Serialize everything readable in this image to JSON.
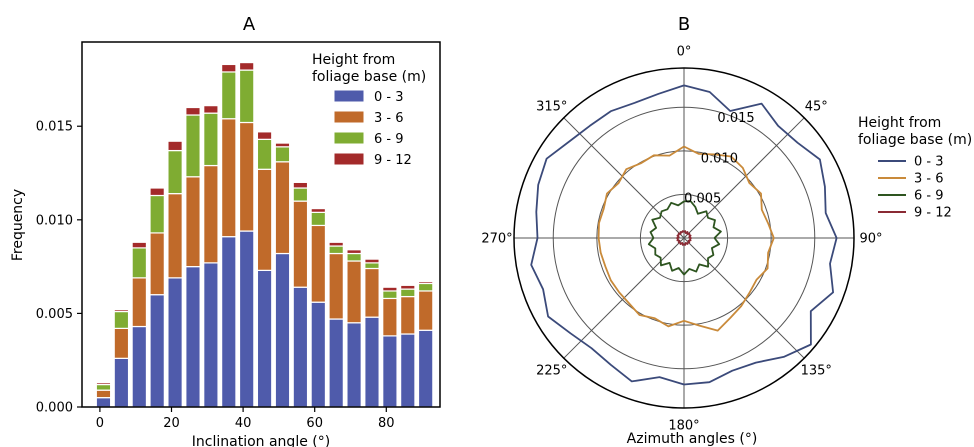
{
  "chart_data": [
    {
      "type": "bar",
      "stacked": true,
      "title": "A",
      "xlabel": "Inclination angle (°)",
      "ylabel": "Frequency",
      "xlim": [
        -5,
        95
      ],
      "ylim": [
        0,
        0.0195
      ],
      "xticks": [
        0,
        20,
        40,
        60,
        80
      ],
      "xtick_labels": [
        "0",
        "20",
        "40",
        "60",
        "80"
      ],
      "yticks": [
        0.0,
        0.005,
        0.01,
        0.015
      ],
      "ytick_labels": [
        "0.000",
        "0.005",
        "0.010",
        "0.015"
      ],
      "legend_title": "Height from\nfoliage base (m)",
      "legend_placement": "top-right",
      "bar_width_deg": 4,
      "x": [
        1,
        6,
        11,
        16,
        21,
        26,
        31,
        36,
        41,
        46,
        51,
        56,
        61,
        66,
        71,
        76,
        81,
        86,
        91
      ],
      "series": [
        {
          "name": "0 - 3",
          "color": "#4f5bab",
          "values": [
            0.0005,
            0.0026,
            0.0043,
            0.006,
            0.0069,
            0.0075,
            0.0077,
            0.0091,
            0.0094,
            0.0073,
            0.0082,
            0.0064,
            0.0056,
            0.0047,
            0.0045,
            0.0048,
            0.0038,
            0.0039,
            0.0041
          ]
        },
        {
          "name": "3 - 6",
          "color": "#c06a2a",
          "values": [
            0.0004,
            0.0016,
            0.0026,
            0.0033,
            0.0045,
            0.0048,
            0.0052,
            0.0063,
            0.0058,
            0.0054,
            0.0049,
            0.0046,
            0.0041,
            0.0035,
            0.0033,
            0.0026,
            0.002,
            0.002,
            0.0021
          ]
        },
        {
          "name": "6 - 9",
          "color": "#7fac32",
          "values": [
            0.0003,
            0.0009,
            0.0016,
            0.002,
            0.0023,
            0.0033,
            0.0028,
            0.0025,
            0.0028,
            0.0016,
            0.0008,
            0.0007,
            0.0007,
            0.0004,
            0.0004,
            0.0003,
            0.0004,
            0.0004,
            0.0004
          ]
        },
        {
          "name": "9 - 12",
          "color": "#a32a2a",
          "values": [
            0.0001,
            0.0001,
            0.0003,
            0.0004,
            0.0005,
            0.0004,
            0.0004,
            0.0004,
            0.0004,
            0.0004,
            0.0002,
            0.0003,
            0.0002,
            0.0002,
            0.0002,
            0.0002,
            0.0002,
            0.0002,
            0.0001
          ]
        }
      ]
    },
    {
      "type": "line",
      "projection": "polar",
      "title": "B",
      "xlabel": "Azimuth angles (°)",
      "theta_direction": "clockwise",
      "theta_zero": "top",
      "rlim": [
        0,
        0.0195
      ],
      "rticks": [
        0.005,
        0.01,
        0.015
      ],
      "rtick_labels": [
        "0.005",
        "0.010",
        "0.015"
      ],
      "theta_ticks": [
        0,
        45,
        90,
        135,
        180,
        225,
        270,
        315
      ],
      "theta_tick_labels": [
        "0°",
        "45°",
        "90°",
        "135°",
        "180°",
        "225°",
        "270°",
        "315°"
      ],
      "legend_title": "Height from\nfoliage base (m)",
      "legend_placement": "right",
      "theta": [
        0,
        10,
        20,
        30,
        40,
        50,
        60,
        70,
        80,
        90,
        100,
        110,
        120,
        130,
        140,
        150,
        160,
        170,
        180,
        190,
        200,
        210,
        220,
        230,
        240,
        250,
        260,
        270,
        280,
        290,
        300,
        310,
        320,
        330,
        340,
        350
      ],
      "series": [
        {
          "name": "0 - 3",
          "color": "#3b4a7a",
          "values": [
            0.0175,
            0.017,
            0.0155,
            0.0178,
            0.0168,
            0.017,
            0.018,
            0.0172,
            0.0165,
            0.0175,
            0.017,
            0.0182,
            0.0168,
            0.019,
            0.0178,
            0.0165,
            0.0162,
            0.0168,
            0.0168,
            0.0162,
            0.0175,
            0.0168,
            0.0165,
            0.017,
            0.018,
            0.0172,
            0.0178,
            0.0168,
            0.0172,
            0.0178,
            0.0182,
            0.0172,
            0.0168,
            0.0168,
            0.0165,
            0.0168
          ]
        },
        {
          "name": "3 - 6",
          "color": "#c98a3a",
          "values": [
            0.0105,
            0.0098,
            0.0102,
            0.0108,
            0.0105,
            0.0098,
            0.0102,
            0.0095,
            0.0098,
            0.0103,
            0.0098,
            0.0102,
            0.0096,
            0.0098,
            0.0102,
            0.0106,
            0.0113,
            0.0102,
            0.0095,
            0.0103,
            0.0098,
            0.0102,
            0.0098,
            0.0097,
            0.0097,
            0.0096,
            0.0097,
            0.0098,
            0.0099,
            0.0098,
            0.0102,
            0.0098,
            0.0103,
            0.0099,
            0.0101,
            0.0096
          ]
        },
        {
          "name": "6 - 9",
          "color": "#2e5520",
          "values": [
            0.0042,
            0.0043,
            0.0038,
            0.0032,
            0.004,
            0.0036,
            0.0041,
            0.0036,
            0.0043,
            0.0035,
            0.0041,
            0.0034,
            0.0039,
            0.0036,
            0.0043,
            0.0035,
            0.0041,
            0.0036,
            0.0042,
            0.0035,
            0.004,
            0.0033,
            0.0041,
            0.0035,
            0.0038,
            0.0035,
            0.0041,
            0.0035,
            0.0039,
            0.0034,
            0.0042,
            0.0036,
            0.004,
            0.0038,
            0.0043,
            0.0038
          ]
        },
        {
          "name": "9 - 12",
          "color": "#8a2a34",
          "values": [
            0.0007,
            0.0008,
            0.0006,
            0.0008,
            0.0006,
            0.0008,
            0.0007,
            0.0008,
            0.0006,
            0.0008,
            0.0007,
            0.0008,
            0.0006,
            0.0008,
            0.0007,
            0.0008,
            0.0006,
            0.0008,
            0.0007,
            0.0008,
            0.0006,
            0.0008,
            0.0007,
            0.0008,
            0.0006,
            0.0008,
            0.0007,
            0.0008,
            0.0006,
            0.0008,
            0.0007,
            0.0008,
            0.0006,
            0.0008,
            0.0007,
            0.0008
          ]
        }
      ]
    }
  ]
}
